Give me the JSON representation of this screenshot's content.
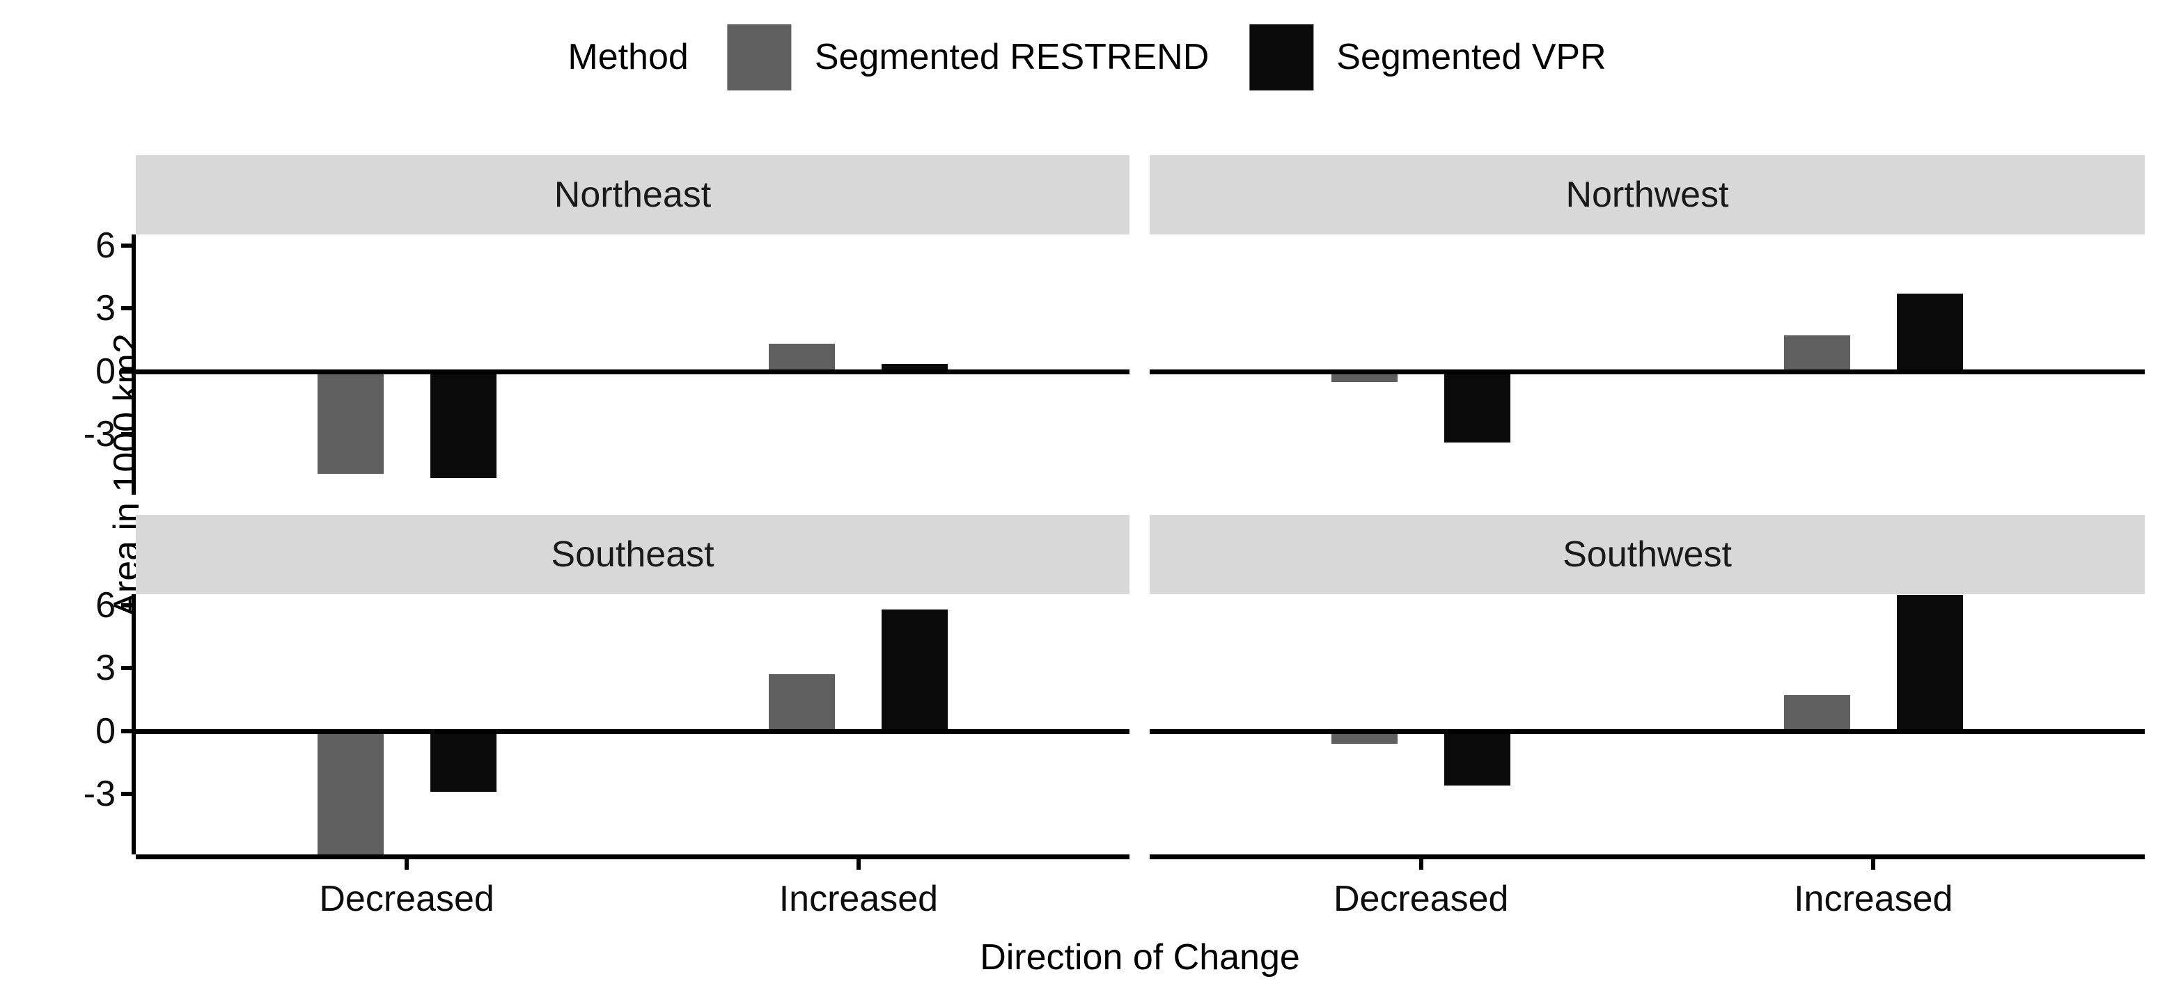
{
  "legend": {
    "title": "Method",
    "items": [
      {
        "label": "Segmented RESTREND",
        "color": "#5f5f5f"
      },
      {
        "label": "Segmented VPR",
        "color": "#0a0a0a"
      }
    ]
  },
  "axes": {
    "y_label": "Area in 1000 km2",
    "x_label": "Direction of Change"
  },
  "chart_data": {
    "type": "bar",
    "legend_title": "Method",
    "legend_position": "top",
    "grid": false,
    "categories": [
      "Decreased",
      "Increased"
    ],
    "yticks": [
      6,
      3,
      0,
      -3
    ],
    "ylim": [
      -5.9,
      6.53
    ],
    "xlabel": "Direction of Change",
    "ylabel": "Area in 1000 km2",
    "series_colors": {
      "Segmented RESTREND": "#5f5f5f",
      "Segmented VPR": "#0a0a0a"
    },
    "facets": [
      {
        "label": "Northeast",
        "series": [
          {
            "name": "Segmented RESTREND",
            "values": [
              -4.9,
              1.3
            ],
            "clipped": [
              false,
              false
            ]
          },
          {
            "name": "Segmented VPR",
            "values": [
              -5.1,
              0.35
            ],
            "clipped": [
              false,
              false
            ]
          }
        ]
      },
      {
        "label": "Northwest",
        "series": [
          {
            "name": "Segmented RESTREND",
            "values": [
              -0.5,
              1.7
            ],
            "clipped": [
              false,
              false
            ]
          },
          {
            "name": "Segmented VPR",
            "values": [
              -3.4,
              3.7
            ],
            "clipped": [
              false,
              false
            ]
          }
        ]
      },
      {
        "label": "Southeast",
        "series": [
          {
            "name": "Segmented RESTREND",
            "values": [
              -5.9,
              2.7
            ],
            "clipped": [
              true,
              false
            ]
          },
          {
            "name": "Segmented VPR",
            "values": [
              -2.9,
              5.8
            ],
            "clipped": [
              false,
              false
            ]
          }
        ]
      },
      {
        "label": "Southwest",
        "series": [
          {
            "name": "Segmented RESTREND",
            "values": [
              -0.6,
              1.7
            ],
            "clipped": [
              false,
              false
            ]
          },
          {
            "name": "Segmented VPR",
            "values": [
              -2.6,
              6.5
            ],
            "clipped": [
              false,
              true
            ]
          }
        ]
      }
    ]
  }
}
